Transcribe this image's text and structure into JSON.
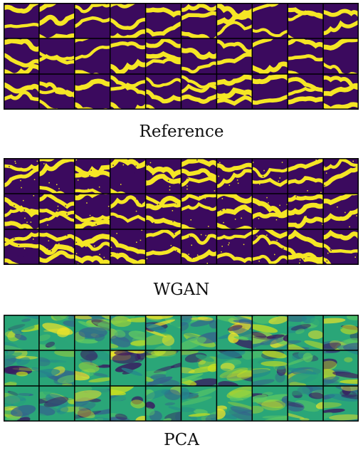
{
  "figure": {
    "grid": {
      "rows": 3,
      "cols": 10
    },
    "panels": [
      {
        "id": "reference",
        "caption": "Reference",
        "style": "binary-channels",
        "colors": {
          "background": "#3b0a5e",
          "foreground": "#f5e625",
          "grid": "#000000"
        },
        "seed": 11
      },
      {
        "id": "wgan",
        "caption": "WGAN",
        "style": "binary-channels-noisy",
        "colors": {
          "background": "#3b0a5e",
          "foreground": "#f5e625",
          "grid": "#000000"
        },
        "seed": 23
      },
      {
        "id": "pca",
        "caption": "PCA",
        "style": "continuous-field",
        "colors": {
          "palette": [
            "#3a0f5f",
            "#355f8d",
            "#24868e",
            "#2aa678",
            "#5ec962",
            "#c8e020",
            "#f5e625"
          ],
          "grid": "#000000"
        },
        "seed": 37
      }
    ]
  }
}
